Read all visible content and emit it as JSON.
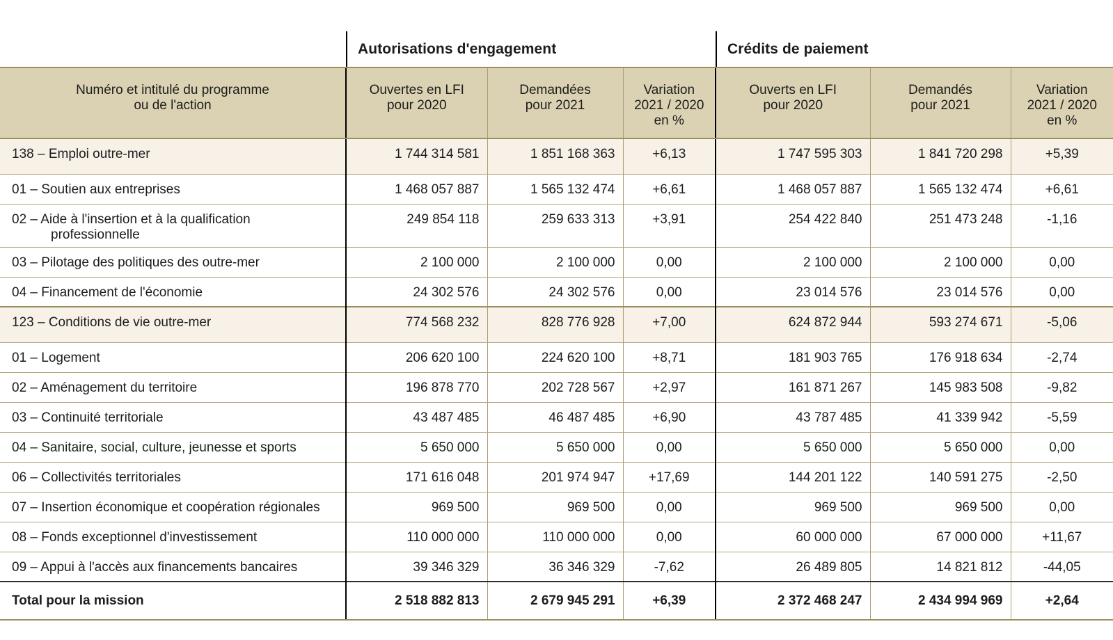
{
  "colors": {
    "header_background": "#dbd2b3",
    "program_row_background": "#f7f1e8",
    "grid_line": "#b4a67c",
    "grid_line_dark": "#9d8f5c",
    "section_divider": "#000000",
    "total_divider": "#2e2e2e",
    "text": "#1c1c1c"
  },
  "sections": {
    "ae_title": "Autorisations d'engagement",
    "cp_title": "Crédits de paiement"
  },
  "headers": {
    "program": "Numéro et intitulé du programme\nou de l'action",
    "ae_lfi": "Ouvertes en LFI\npour 2020",
    "ae_requested": "Demandées\npour 2021",
    "ae_variation": "Variation\n2021 / 2020\nen %",
    "cp_lfi": "Ouverts en LFI\npour 2020",
    "cp_requested": "Demandés\npour 2021",
    "cp_variation": "Variation\n2021 / 2020\nen %"
  },
  "rows": [
    {
      "type": "program",
      "label": "138 – Emploi outre-mer",
      "values": [
        "1 744 314 581",
        "1 851 168 363",
        "+6,13",
        "1 747 595 303",
        "1 841 720 298",
        "+5,39"
      ]
    },
    {
      "type": "action",
      "label": "01 – Soutien aux entreprises",
      "values": [
        "1 468 057 887",
        "1 565 132 474",
        "+6,61",
        "1 468 057 887",
        "1 565 132 474",
        "+6,61"
      ]
    },
    {
      "type": "action",
      "label": "02 – Aide à l'insertion et à la qualification professionnelle",
      "values": [
        "249 854 118",
        "259 633 313",
        "+3,91",
        "254 422 840",
        "251 473 248",
        "-1,16"
      ]
    },
    {
      "type": "action",
      "label": "03 – Pilotage des politiques des outre-mer",
      "values": [
        "2 100 000",
        "2 100 000",
        "0,00",
        "2 100 000",
        "2 100 000",
        "0,00"
      ]
    },
    {
      "type": "action",
      "label": "04 – Financement de l'économie",
      "values": [
        "24 302 576",
        "24 302 576",
        "0,00",
        "23 014 576",
        "23 014 576",
        "0,00"
      ]
    },
    {
      "type": "program",
      "label": "123 – Conditions de vie outre-mer",
      "values": [
        "774 568 232",
        "828 776 928",
        "+7,00",
        "624 872 944",
        "593 274 671",
        "-5,06"
      ]
    },
    {
      "type": "action",
      "label": "01 – Logement",
      "values": [
        "206 620 100",
        "224 620 100",
        "+8,71",
        "181 903 765",
        "176 918 634",
        "-2,74"
      ]
    },
    {
      "type": "action",
      "label": "02 – Aménagement du territoire",
      "values": [
        "196 878 770",
        "202 728 567",
        "+2,97",
        "161 871 267",
        "145 983 508",
        "-9,82"
      ]
    },
    {
      "type": "action",
      "label": "03 – Continuité territoriale",
      "values": [
        "43 487 485",
        "46 487 485",
        "+6,90",
        "43 787 485",
        "41 339 942",
        "-5,59"
      ]
    },
    {
      "type": "action",
      "label": "04 – Sanitaire, social, culture, jeunesse et sports",
      "values": [
        "5 650 000",
        "5 650 000",
        "0,00",
        "5 650 000",
        "5 650 000",
        "0,00"
      ]
    },
    {
      "type": "action",
      "label": "06 – Collectivités territoriales",
      "values": [
        "171 616 048",
        "201 974 947",
        "+17,69",
        "144 201 122",
        "140 591 275",
        "-2,50"
      ]
    },
    {
      "type": "action",
      "label": "07 – Insertion économique et coopération régionales",
      "values": [
        "969 500",
        "969 500",
        "0,00",
        "969 500",
        "969 500",
        "0,00"
      ]
    },
    {
      "type": "action",
      "label": "08 – Fonds exceptionnel d'investissement",
      "values": [
        "110 000 000",
        "110 000 000",
        "0,00",
        "60 000 000",
        "67 000 000",
        "+11,67"
      ]
    },
    {
      "type": "action",
      "label": "09 – Appui à l'accès aux financements bancaires",
      "values": [
        "39 346 329",
        "36 346 329",
        "-7,62",
        "26 489 805",
        "14 821 812",
        "-44,05"
      ]
    },
    {
      "type": "total",
      "label": "Total pour la mission",
      "values": [
        "2 518 882 813",
        "2 679 945 291",
        "+6,39",
        "2 372 468 247",
        "2 434 994 969",
        "+2,64"
      ]
    }
  ]
}
